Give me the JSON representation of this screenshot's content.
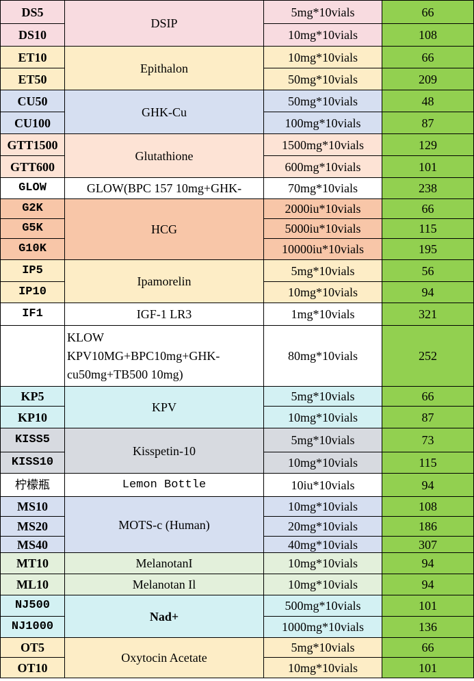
{
  "rows": [
    {
      "code": "DS5",
      "product": "DSIP",
      "spec": "5mg*10vials",
      "price": "66"
    },
    {
      "code": "DS10",
      "spec": "10mg*10vials",
      "price": "108"
    },
    {
      "code": "ET10",
      "product": "Epithalon",
      "spec": "10mg*10vials",
      "price": "66"
    },
    {
      "code": "ET50",
      "spec": "50mg*10vials",
      "price": "209"
    },
    {
      "code": "CU50",
      "product": "GHK-Cu",
      "spec": "50mg*10vials",
      "price": "48"
    },
    {
      "code": "CU100",
      "spec": "100mg*10vials",
      "price": "87"
    },
    {
      "code": "GTT1500",
      "product": "Glutathione",
      "spec": "1500mg*10vials",
      "price": "129"
    },
    {
      "code": "GTT600",
      "spec": "600mg*10vials",
      "price": "101"
    },
    {
      "code": "GLOW",
      "product": "GLOW(BPC 157 10mg+GHK-",
      "spec": "70mg*10vials",
      "price": "238"
    },
    {
      "code": "G2K",
      "product": "HCG",
      "spec": "2000iu*10vials",
      "price": "66"
    },
    {
      "code": "G5K",
      "spec": "5000iu*10vials",
      "price": "115"
    },
    {
      "code": "G10K",
      "spec": "10000iu*10vials",
      "price": "195"
    },
    {
      "code": "IP5",
      "product": "Ipamorelin",
      "spec": "5mg*10vials",
      "price": "56"
    },
    {
      "code": "IP10",
      "spec": "10mg*10vials",
      "price": "94"
    },
    {
      "code": "IF1",
      "product": "IGF-1 LR3",
      "spec": "1mg*10vials",
      "price": "321"
    },
    {
      "code": "",
      "product_lines": [
        "KLOW",
        "KPV10MG+BPC10mg+GHK-",
        "cu50mg+TB500 10mg)"
      ],
      "spec": "80mg*10vials",
      "price": "252"
    },
    {
      "code": "KP5",
      "product": "KPV",
      "spec": "5mg*10vials",
      "price": "66"
    },
    {
      "code": "KP10",
      "spec": "10mg*10vials",
      "price": "87"
    },
    {
      "code": "KISS5",
      "product": "Kisspetin-10",
      "spec": "5mg*10vials",
      "price": "73"
    },
    {
      "code": "KISS10",
      "spec": "10mg*10vials",
      "price": "115"
    },
    {
      "code": "柠檬瓶",
      "product": "Lemon Bottle",
      "spec": "10iu*10vials",
      "price": "94"
    },
    {
      "code": "MS10",
      "product": "MOTS-c (Human)",
      "spec": "10mg*10vials",
      "price": "108"
    },
    {
      "code": "MS20",
      "spec": "20mg*10vials",
      "price": "186"
    },
    {
      "code": "MS40",
      "spec": "40mg*10vials",
      "price": "307"
    },
    {
      "code": "MT10",
      "product": "MelanotanI",
      "spec": "10mg*10vials",
      "price": "94"
    },
    {
      "code": "ML10",
      "product": "Melanotan Il",
      "spec": "10mg*10vials",
      "price": "94"
    },
    {
      "code": "NJ500",
      "product": "Nad+",
      "spec": "500mg*10vials",
      "price": "101"
    },
    {
      "code": "NJ1000",
      "spec": "1000mg*10vials",
      "price": "136"
    },
    {
      "code": "OT5",
      "product": "Oxytocin Acetate",
      "spec": "5mg*10vials",
      "price": "66"
    },
    {
      "code": "OT10",
      "spec": "10mg*10vials",
      "price": "101"
    }
  ],
  "colors": {
    "pink": "#f8dbe0",
    "yellow": "#fdedc6",
    "blue": "#d6dff1",
    "peach": "#fde3d5",
    "orange": "#f8c6a8",
    "cyan": "#d3f1f3",
    "gray": "#d7dae0",
    "green_light": "#e3f0db",
    "price_green": "#92d050"
  }
}
